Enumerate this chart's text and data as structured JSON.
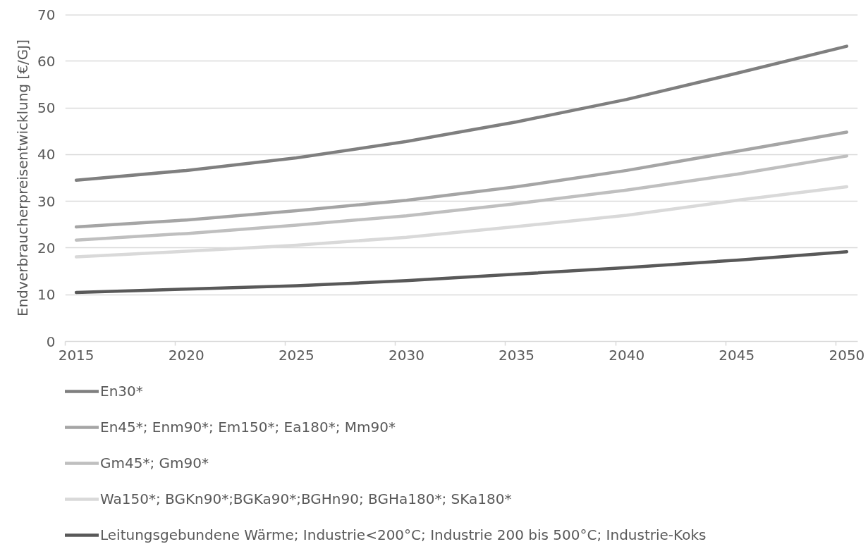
{
  "chart_data": {
    "type": "line",
    "ylabel": "Endverbraucherpreisentwicklung [€/GJ]",
    "x": [
      2015,
      2020,
      2025,
      2030,
      2035,
      2040,
      2045,
      2050
    ],
    "xlim": [
      2014.5,
      2050.5
    ],
    "xticks": [
      {
        "value": 2014.5,
        "label": null
      },
      2015,
      {
        "value": 2019.5,
        "label": null
      },
      2020,
      {
        "value": 2024.5,
        "label": null
      },
      2025,
      {
        "value": 2029.5,
        "label": null
      },
      2030,
      {
        "value": 2034.5,
        "label": null
      },
      2035,
      {
        "value": 2039.5,
        "label": null
      },
      2040,
      {
        "value": 2044.5,
        "label": null
      },
      2045,
      {
        "value": 2049.5,
        "label": null
      },
      2050
    ],
    "ylim": [
      0,
      70
    ],
    "yticks": [
      0,
      10,
      20,
      30,
      40,
      50,
      60,
      70
    ],
    "grid": "y",
    "legend": "bottom",
    "line_style": "solid",
    "series": [
      {
        "name": "En30*",
        "color": "#7f7f7f",
        "values": [
          34.5,
          36.6,
          39.3,
          42.8,
          47.0,
          51.8,
          57.4,
          63.2
        ]
      },
      {
        "name": "En45*; Enm90*; Em150*; Ea180*; Mm90*",
        "color": "#a5a5a5",
        "values": [
          24.5,
          26.0,
          28.0,
          30.2,
          33.1,
          36.6,
          40.7,
          44.8
        ]
      },
      {
        "name": "Gm45*; Gm90*",
        "color": "#bfbfbf",
        "values": [
          21.7,
          23.1,
          24.9,
          26.9,
          29.5,
          32.4,
          35.8,
          39.7
        ]
      },
      {
        "name": "Wa150*; BGKn90*;BGKa90*;BGHn90; BGHa180*; SKa180*",
        "color": "#d9d9d9",
        "values": [
          18.1,
          19.3,
          20.6,
          22.3,
          24.6,
          27.0,
          30.2,
          33.1
        ]
      },
      {
        "name": "Leitungsgebundene Wärme; Industrie<200°C; Industrie 200 bis 500°C; Industrie-Koks",
        "color": "#595959",
        "values": [
          10.5,
          11.2,
          11.9,
          13.0,
          14.4,
          15.8,
          17.4,
          19.2
        ]
      }
    ]
  }
}
